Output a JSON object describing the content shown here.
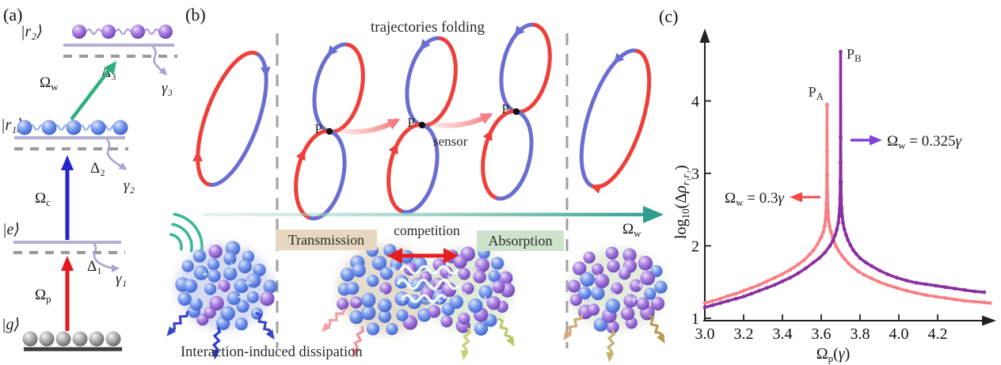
{
  "panels": {
    "a": "(a)",
    "b": "(b)",
    "c": "(c)"
  },
  "panel_a": {
    "kets": {
      "r2": "|r₂⟩",
      "r1": "|r₁⟩",
      "e": "|e⟩",
      "g": "|g⟩"
    },
    "omega_w": {
      "sym": "Ω",
      "sub": "w"
    },
    "omega_c": {
      "sym": "Ω",
      "sub": "c"
    },
    "omega_p": {
      "sym": "Ω",
      "sub": "p"
    },
    "delta_1": "Δ₁",
    "delta_2": "Δ₂",
    "delta_3": "Δ₃",
    "gamma_1": "γ₁",
    "gamma_2": "γ₂",
    "gamma_3": "γ₃",
    "colors": {
      "probe_arrow": "#e3191f",
      "coupling_arrow": "#2424cc",
      "dressing_arrow": "#2eaf7d",
      "level_line": "#b3b0d6",
      "virtual_level": "#9a9a9a",
      "decay_arrow": "#a8a6d2",
      "chain_blue": "#8fb2ea",
      "chain_purple": "#b0a0e0",
      "ground_line": "#3c3c3c"
    }
  },
  "panel_b": {
    "title": "trajectories folding",
    "sensor": "sensor",
    "competition": "competition",
    "transmission": "Transmission",
    "absorption": "Absorption",
    "dissipation": "Interaction-induced dissipation",
    "p_label": "P",
    "omega_w": {
      "sym": "Ω",
      "sub": "w"
    },
    "colors": {
      "trajectory_red": "#ee3f3a",
      "trajectory_blue": "#6a6ed0",
      "fold_arrow": "#f57e86",
      "axis_teal": "#2f9e8e",
      "wave_icon": "#3cb98d",
      "competition_arrow": "#e51f1f",
      "transmission_bg": "#e7d9bf",
      "absorption_bg": "#cde3cb",
      "dashed_divider": "#a0a0a0"
    },
    "clusters": [
      {
        "halo": "#b8bfe8",
        "purple_ratio": 0.18,
        "arrow_colors": [
          "#3946c8",
          "#2c3ed1",
          "#3946c8"
        ]
      },
      {
        "halo": "#cfc0a4",
        "purple_ratio": 0.12,
        "arrow_colors": [
          "#f2a0a8",
          "#f0949e"
        ]
      },
      {
        "halo": "#c8ddb9",
        "purple_ratio": 0.72,
        "arrow_colors": [
          "#c9cf72",
          "#bcc765"
        ]
      },
      {
        "halo": "#cfe0c2",
        "purple_ratio": 0.78,
        "arrow_colors": [
          "#d4a77a",
          "#c2b269",
          "#b89a55"
        ]
      }
    ]
  },
  "panel_c": {
    "peak_a": {
      "main": "P",
      "sub": "A"
    },
    "peak_b": {
      "main": "P",
      "sub": "B"
    },
    "legend_a": {
      "sym": "Ω",
      "sub": "w",
      "eq": " = 0.3",
      "gamma": "γ"
    },
    "legend_b": {
      "sym": "Ω",
      "sub": "w",
      "eq": " = 0.325",
      "gamma": "γ"
    },
    "xlabel": {
      "sym": "Ω",
      "sub": "p",
      "open": "(",
      "gamma": "γ",
      "close": ")"
    },
    "ylabel": {
      "log": "log",
      "sub10": "10",
      "open": "(Δ",
      "rho": "ρ",
      "sub": "r₁r₁",
      "close": ")"
    },
    "legend_a_arrow_color": "#f04a4a",
    "legend_b_arrow_color": "#8042d8"
  },
  "chart_data": {
    "type": "line",
    "title": "",
    "xlabel": "Ω_p(γ)",
    "ylabel": "log10(Δρ_r1r1)",
    "xlim": [
      3.0,
      4.5
    ],
    "ylim": [
      1,
      5
    ],
    "grid": false,
    "legend_position": "annotated-arrows",
    "xticks": [
      3.0,
      3.2,
      3.4,
      3.6,
      3.8,
      4.0,
      4.2
    ],
    "yticks": [
      1,
      2,
      3,
      4
    ],
    "series": [
      {
        "name": "Ω_w = 0.3γ",
        "color": "#f87f83",
        "peak_label": "P_A",
        "peak": [
          3.63,
          3.95
        ],
        "points": [
          [
            3.0,
            1.21
          ],
          [
            3.04,
            1.24
          ],
          [
            3.08,
            1.27
          ],
          [
            3.12,
            1.31
          ],
          [
            3.16,
            1.34
          ],
          [
            3.2,
            1.38
          ],
          [
            3.24,
            1.42
          ],
          [
            3.28,
            1.46
          ],
          [
            3.32,
            1.51
          ],
          [
            3.36,
            1.56
          ],
          [
            3.4,
            1.61
          ],
          [
            3.44,
            1.67
          ],
          [
            3.48,
            1.74
          ],
          [
            3.51,
            1.8
          ],
          [
            3.54,
            1.88
          ],
          [
            3.56,
            1.94
          ],
          [
            3.58,
            2.02
          ],
          [
            3.6,
            2.12
          ],
          [
            3.61,
            2.19
          ],
          [
            3.617,
            2.27
          ],
          [
            3.622,
            2.36
          ],
          [
            3.625,
            2.47
          ],
          [
            3.6265,
            2.58
          ],
          [
            3.628,
            2.74
          ],
          [
            3.629,
            2.98
          ],
          [
            3.6295,
            3.3
          ],
          [
            3.63,
            3.95
          ],
          [
            3.6305,
            3.3
          ],
          [
            3.631,
            2.98
          ],
          [
            3.632,
            2.74
          ],
          [
            3.6335,
            2.58
          ],
          [
            3.635,
            2.47
          ],
          [
            3.638,
            2.36
          ],
          [
            3.643,
            2.27
          ],
          [
            3.65,
            2.19
          ],
          [
            3.658,
            2.12
          ],
          [
            3.667,
            2.05
          ],
          [
            3.677,
            1.99
          ],
          [
            3.69,
            1.93
          ],
          [
            3.705,
            1.87
          ],
          [
            3.72,
            1.82
          ],
          [
            3.74,
            1.76
          ],
          [
            3.76,
            1.71
          ],
          [
            3.79,
            1.65
          ],
          [
            3.82,
            1.6
          ],
          [
            3.86,
            1.55
          ],
          [
            3.9,
            1.5
          ],
          [
            3.94,
            1.46
          ],
          [
            3.99,
            1.42
          ],
          [
            4.04,
            1.38
          ],
          [
            4.09,
            1.35
          ],
          [
            4.14,
            1.32
          ],
          [
            4.19,
            1.3
          ],
          [
            4.24,
            1.28
          ],
          [
            4.29,
            1.26
          ],
          [
            4.34,
            1.24
          ],
          [
            4.39,
            1.23
          ],
          [
            4.44,
            1.22
          ],
          [
            4.47,
            1.21
          ]
        ]
      },
      {
        "name": "Ω_w = 0.325γ",
        "color": "#8b2fa0",
        "peak_label": "P_B",
        "peak": [
          3.7,
          4.68
        ],
        "points": [
          [
            3.0,
            1.15
          ],
          [
            3.04,
            1.18
          ],
          [
            3.08,
            1.21
          ],
          [
            3.12,
            1.24
          ],
          [
            3.16,
            1.27
          ],
          [
            3.2,
            1.3
          ],
          [
            3.24,
            1.34
          ],
          [
            3.28,
            1.38
          ],
          [
            3.32,
            1.42
          ],
          [
            3.36,
            1.46
          ],
          [
            3.4,
            1.51
          ],
          [
            3.44,
            1.56
          ],
          [
            3.48,
            1.62
          ],
          [
            3.52,
            1.69
          ],
          [
            3.56,
            1.77
          ],
          [
            3.59,
            1.83
          ],
          [
            3.62,
            1.91
          ],
          [
            3.645,
            2.0
          ],
          [
            3.66,
            2.07
          ],
          [
            3.672,
            2.15
          ],
          [
            3.681,
            2.23
          ],
          [
            3.688,
            2.32
          ],
          [
            3.692,
            2.41
          ],
          [
            3.695,
            2.52
          ],
          [
            3.697,
            2.66
          ],
          [
            3.6985,
            2.88
          ],
          [
            3.6993,
            3.15
          ],
          [
            3.6997,
            3.5
          ],
          [
            3.7,
            4.68
          ],
          [
            3.7003,
            3.5
          ],
          [
            3.7007,
            3.15
          ],
          [
            3.7015,
            2.88
          ],
          [
            3.703,
            2.66
          ],
          [
            3.705,
            2.52
          ],
          [
            3.708,
            2.41
          ],
          [
            3.712,
            2.32
          ],
          [
            3.719,
            2.23
          ],
          [
            3.728,
            2.15
          ],
          [
            3.738,
            2.08
          ],
          [
            3.75,
            2.01
          ],
          [
            3.765,
            1.94
          ],
          [
            3.78,
            1.89
          ],
          [
            3.8,
            1.83
          ],
          [
            3.83,
            1.77
          ],
          [
            3.86,
            1.72
          ],
          [
            3.9,
            1.66
          ],
          [
            3.94,
            1.61
          ],
          [
            3.99,
            1.56
          ],
          [
            4.04,
            1.52
          ],
          [
            4.09,
            1.49
          ],
          [
            4.14,
            1.47
          ],
          [
            4.19,
            1.45
          ],
          [
            4.24,
            1.43
          ],
          [
            4.29,
            1.41
          ],
          [
            4.34,
            1.39
          ],
          [
            4.39,
            1.37
          ],
          [
            4.44,
            1.36
          ]
        ]
      }
    ]
  }
}
